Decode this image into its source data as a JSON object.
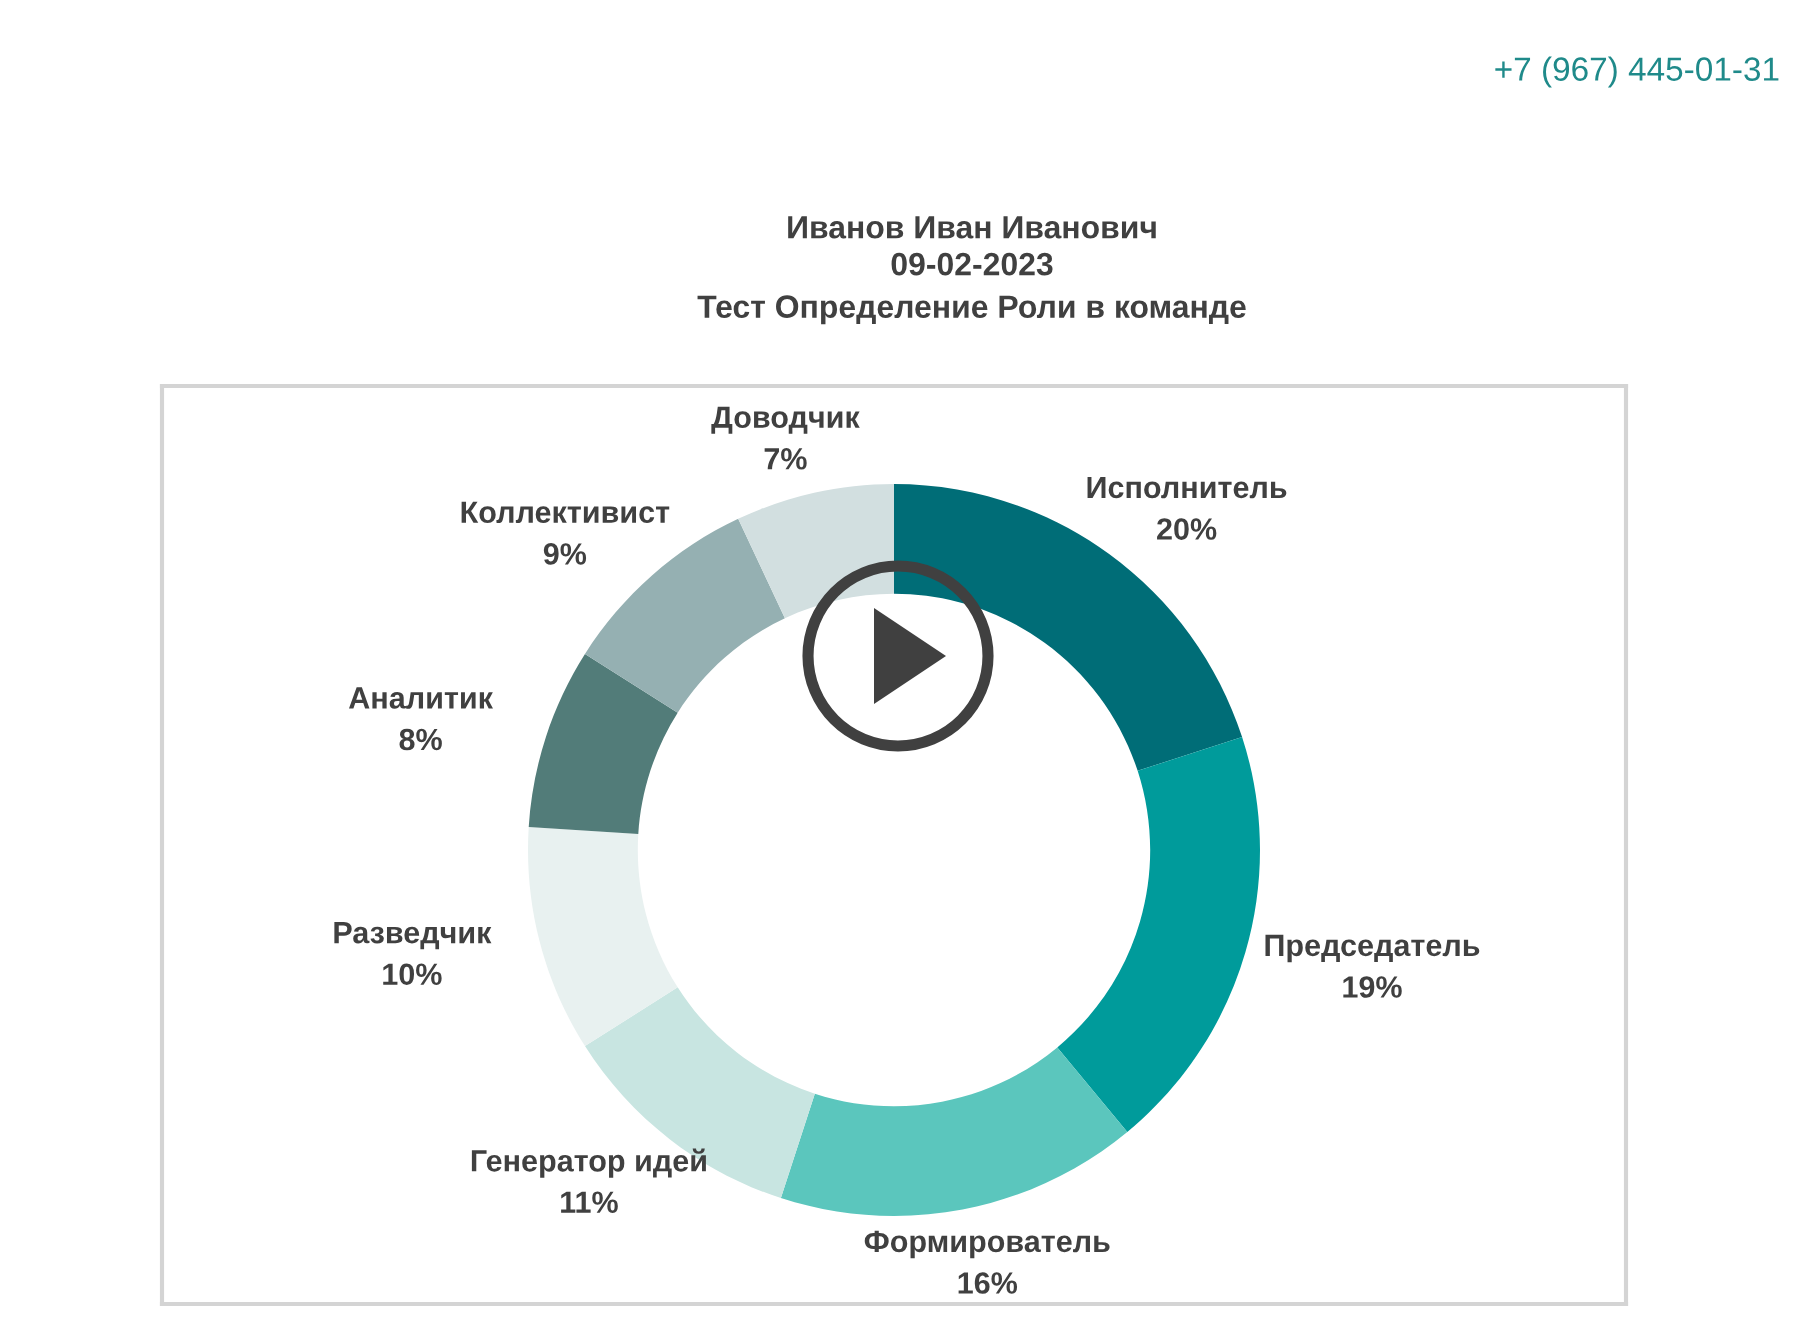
{
  "chart_data": {
    "type": "donut",
    "title": "Иванов Иван Иванович",
    "subtitle": "09-02-2023\nТест Определение Роли в команде",
    "categories": [
      "Исполнитель",
      "Председатель",
      "Формирователь",
      "Генератор идей",
      "Разведчик",
      "Аналитик",
      "Коллективист",
      "Доводчик"
    ],
    "values": [
      20,
      19,
      16,
      11,
      10,
      8,
      9,
      7
    ],
    "value_labels": [
      "20%",
      "19%",
      "16%",
      "11%",
      "10%",
      "8%",
      "9%",
      "7%"
    ],
    "colors": [
      "#006d77",
      "#009b9b",
      "#5bc6bd",
      "#c8e5e1",
      "#e8f1f0",
      "#527c79",
      "#95b0b2",
      "#d2dfe0"
    ],
    "annotations": [
      "+7 (967) 445-01-31"
    ]
  }
}
